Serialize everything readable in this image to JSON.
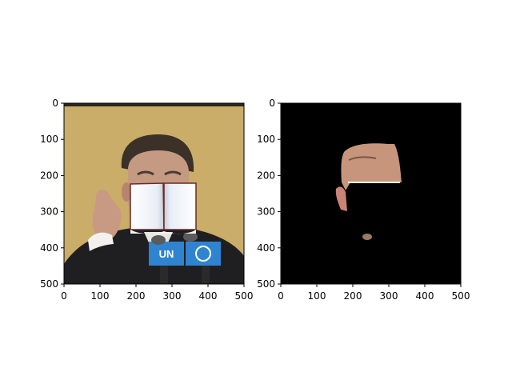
{
  "figure": {
    "panels": [
      {
        "id": "left",
        "name": "original-with-occlusion",
        "x_ticks": [
          "0",
          "100",
          "200",
          "300",
          "400",
          "500"
        ],
        "y_ticks": [
          "0",
          "100",
          "200",
          "300",
          "400",
          "500"
        ],
        "content": {
          "background_color": "#c9ad69",
          "occluder": "open-book",
          "microphone_text": [
            "UN",
            "UN"
          ]
        }
      },
      {
        "id": "right",
        "name": "segmentation-mask",
        "x_ticks": [
          "0",
          "100",
          "200",
          "300",
          "400",
          "500"
        ],
        "y_ticks": [
          "0",
          "100",
          "200",
          "300",
          "400",
          "500"
        ],
        "content": {
          "background_color": "#000000"
        }
      }
    ]
  }
}
